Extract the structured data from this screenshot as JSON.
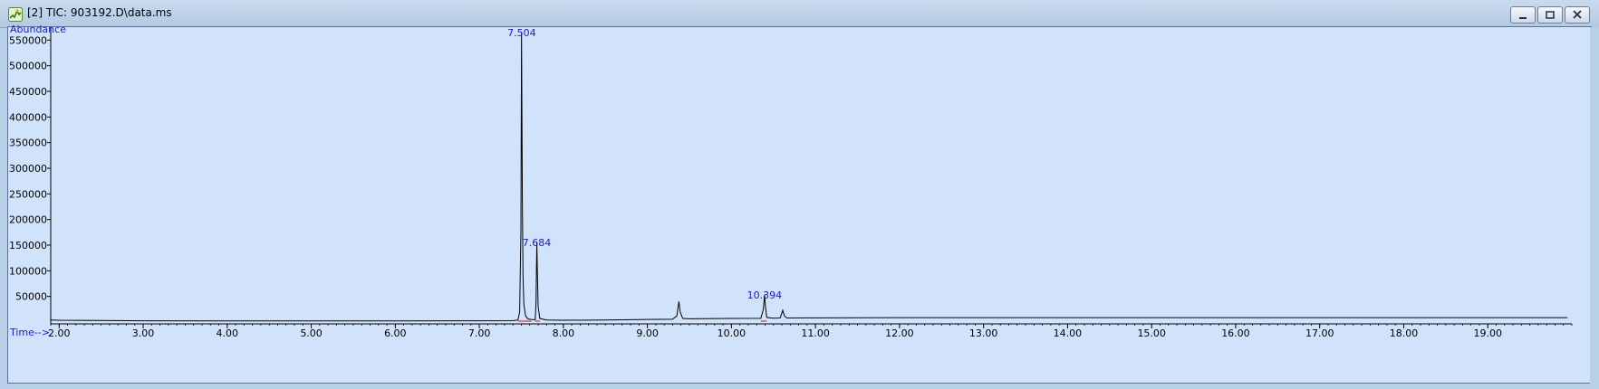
{
  "window": {
    "title": "[2] TIC: 903192.D\\data.ms",
    "icon": "chromatogram-icon",
    "buttons": [
      "minimize",
      "restore",
      "close"
    ]
  },
  "chart_data": {
    "type": "line",
    "xlabel": "Time-->",
    "ylabel": "Abundance",
    "xlim": [
      1.9,
      20.0
    ],
    "ylim": [
      0,
      570000
    ],
    "x_ticks": [
      2.0,
      3.0,
      4.0,
      5.0,
      6.0,
      7.0,
      8.0,
      9.0,
      10.0,
      11.0,
      12.0,
      13.0,
      14.0,
      15.0,
      16.0,
      17.0,
      18.0,
      19.0
    ],
    "x_tick_labels": [
      "2.00",
      "3.00",
      "4.00",
      "5.00",
      "6.00",
      "7.00",
      "8.00",
      "9.00",
      "10.00",
      "11.00",
      "12.00",
      "13.00",
      "14.00",
      "15.00",
      "16.00",
      "17.00",
      "18.00",
      "19.00"
    ],
    "y_ticks": [
      50000,
      100000,
      150000,
      200000,
      250000,
      300000,
      350000,
      400000,
      450000,
      500000,
      550000
    ],
    "y_tick_labels": [
      "50000",
      "100000",
      "150000",
      "200000",
      "250000",
      "300000",
      "350000",
      "400000",
      "450000",
      "500000",
      "550000"
    ],
    "line_color": "#000000",
    "label_color": "#1a1ad0",
    "baseline_color": "#e03030",
    "series": [
      {
        "values": [
          [
            1.9,
            4000
          ],
          [
            2.0,
            3500
          ],
          [
            3.0,
            2500
          ],
          [
            4.0,
            2300
          ],
          [
            5.0,
            2200
          ],
          [
            6.0,
            2300
          ],
          [
            7.0,
            2500
          ],
          [
            7.4,
            2700
          ],
          [
            7.46,
            4000
          ],
          [
            7.48,
            20000
          ],
          [
            7.495,
            180000
          ],
          [
            7.502,
            565000
          ],
          [
            7.507,
            400000
          ],
          [
            7.512,
            240000
          ],
          [
            7.52,
            90000
          ],
          [
            7.53,
            35000
          ],
          [
            7.55,
            12000
          ],
          [
            7.58,
            6000
          ],
          [
            7.62,
            5000
          ],
          [
            7.665,
            4500
          ],
          [
            7.675,
            40000
          ],
          [
            7.684,
            155000
          ],
          [
            7.69,
            105000
          ],
          [
            7.7,
            30000
          ],
          [
            7.72,
            7000
          ],
          [
            7.8,
            4000
          ],
          [
            8.0,
            3500
          ],
          [
            8.5,
            4000
          ],
          [
            9.0,
            5000
          ],
          [
            9.3,
            5500
          ],
          [
            9.35,
            12000
          ],
          [
            9.375,
            40000
          ],
          [
            9.39,
            20000
          ],
          [
            9.42,
            7000
          ],
          [
            9.5,
            6500
          ],
          [
            10.0,
            7000
          ],
          [
            10.35,
            7200
          ],
          [
            10.38,
            25000
          ],
          [
            10.394,
            53000
          ],
          [
            10.405,
            30000
          ],
          [
            10.42,
            9000
          ],
          [
            10.5,
            7500
          ],
          [
            10.58,
            8000
          ],
          [
            10.61,
            23000
          ],
          [
            10.63,
            12000
          ],
          [
            10.66,
            8000
          ],
          [
            11.0,
            8200
          ],
          [
            12.0,
            8500
          ],
          [
            13.0,
            8500
          ],
          [
            14.0,
            8700
          ],
          [
            15.0,
            8700
          ],
          [
            16.0,
            8600
          ],
          [
            17.0,
            8700
          ],
          [
            18.0,
            8600
          ],
          [
            19.0,
            8600
          ],
          [
            19.95,
            8600
          ]
        ]
      }
    ],
    "annotations": [
      {
        "label": "7.504",
        "x": 7.504,
        "y": 565000
      },
      {
        "label": "7.684",
        "x": 7.684,
        "y": 155000
      },
      {
        "label": "10.394",
        "x": 10.394,
        "y": 53000
      }
    ],
    "integration_baselines": [
      [
        7.46,
        7.62
      ],
      [
        7.665,
        7.72
      ],
      [
        10.35,
        10.42
      ]
    ]
  }
}
